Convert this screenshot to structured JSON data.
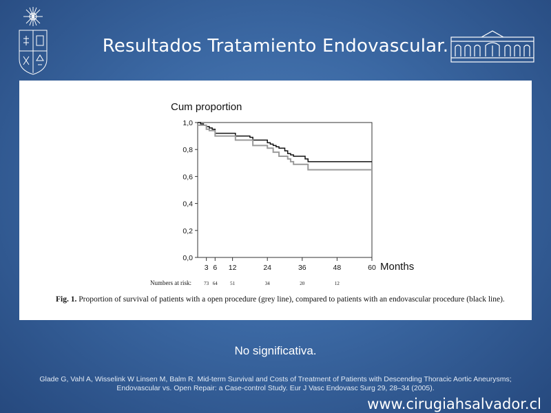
{
  "slide": {
    "title": "Resultados Tratamiento Endovascular.",
    "note": "No significativa.",
    "reference_line1": "Glade G, Vahl A, Wisselink W Linsen M, Balm R. Mid-term Survival and Costs of Treatment of Patients with Descending Thoracic Aortic Aneurysms;",
    "reference_line2": "Endovascular vs. Open Repair: a Case-control Study. Eur J Vasc Endovasc Surg 29, 28–34 (2005).",
    "website": "www.cirugiahsalvador.cl",
    "left_logo_icon": "university-crest-icon",
    "right_logo_icon": "hospital-building-icon",
    "colors": {
      "background": "#3b68a3",
      "panel": "#ffffff",
      "text": "#ffffff"
    }
  },
  "figure": {
    "caption_label": "Fig. 1.",
    "caption_text": "Proportion of survival of patients with a open procedure (grey line), compared to patients with an endovascular procedure (black line).",
    "numbers_at_risk_label": "Numbers at risk:",
    "numbers_at_risk": [
      {
        "month": 3,
        "value": "73"
      },
      {
        "month": 6,
        "value": "64"
      },
      {
        "month": 12,
        "value": "51"
      },
      {
        "month": 24,
        "value": "34"
      },
      {
        "month": 36,
        "value": "20"
      },
      {
        "month": 48,
        "value": "12"
      }
    ]
  },
  "chart_data": {
    "type": "line",
    "ylabel": "Cum proportion",
    "xlabel": "Months",
    "xlim": [
      0,
      60
    ],
    "ylim": [
      0,
      1
    ],
    "x_ticks": [
      "3",
      "6",
      "12",
      "24",
      "36",
      "48",
      "60"
    ],
    "x_tick_values": [
      3,
      6,
      12,
      24,
      36,
      48,
      60
    ],
    "y_ticks": [
      "0,0",
      "0,2",
      "0,4",
      "0,6",
      "0,8",
      "1,0"
    ],
    "y_tick_values": [
      0,
      0.2,
      0.4,
      0.6,
      0.8,
      1.0
    ],
    "grid": false,
    "step": true,
    "series": [
      {
        "color": "#111111",
        "x": [
          0,
          1,
          2,
          3,
          4,
          5,
          6,
          13,
          18,
          19,
          24,
          25,
          26,
          27,
          28,
          30,
          31,
          32,
          33,
          37,
          38,
          60
        ],
        "y": [
          1.0,
          0.99,
          0.98,
          0.97,
          0.96,
          0.95,
          0.92,
          0.9,
          0.89,
          0.87,
          0.85,
          0.84,
          0.83,
          0.82,
          0.81,
          0.79,
          0.77,
          0.76,
          0.75,
          0.73,
          0.71,
          0.71
        ]
      },
      {
        "color": "#9a9a9a",
        "x": [
          0,
          3,
          4,
          6,
          13,
          19,
          24,
          26,
          28,
          31,
          32,
          33,
          38,
          60
        ],
        "y": [
          0.98,
          0.95,
          0.94,
          0.9,
          0.87,
          0.83,
          0.81,
          0.78,
          0.75,
          0.73,
          0.71,
          0.69,
          0.65,
          0.65
        ]
      }
    ]
  }
}
